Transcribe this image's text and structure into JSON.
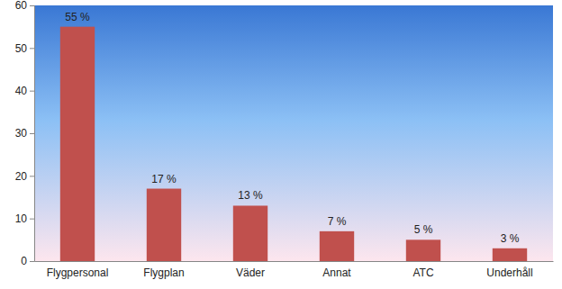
{
  "chart_data": {
    "type": "bar",
    "categories": [
      "Flygpersonal",
      "Flygplan",
      "Väder",
      "Annat",
      "ATC",
      "Underhåll"
    ],
    "values": [
      55,
      17,
      13,
      7,
      5,
      3
    ],
    "value_labels": [
      "55 %",
      "17 %",
      "13 %",
      "7 %",
      "5 %",
      "3 %"
    ],
    "color": "#c0504d",
    "ylim": [
      0,
      60
    ],
    "yticks": [
      0,
      10,
      20,
      30,
      40,
      50,
      60
    ],
    "grid": false,
    "data_labels": true
  }
}
